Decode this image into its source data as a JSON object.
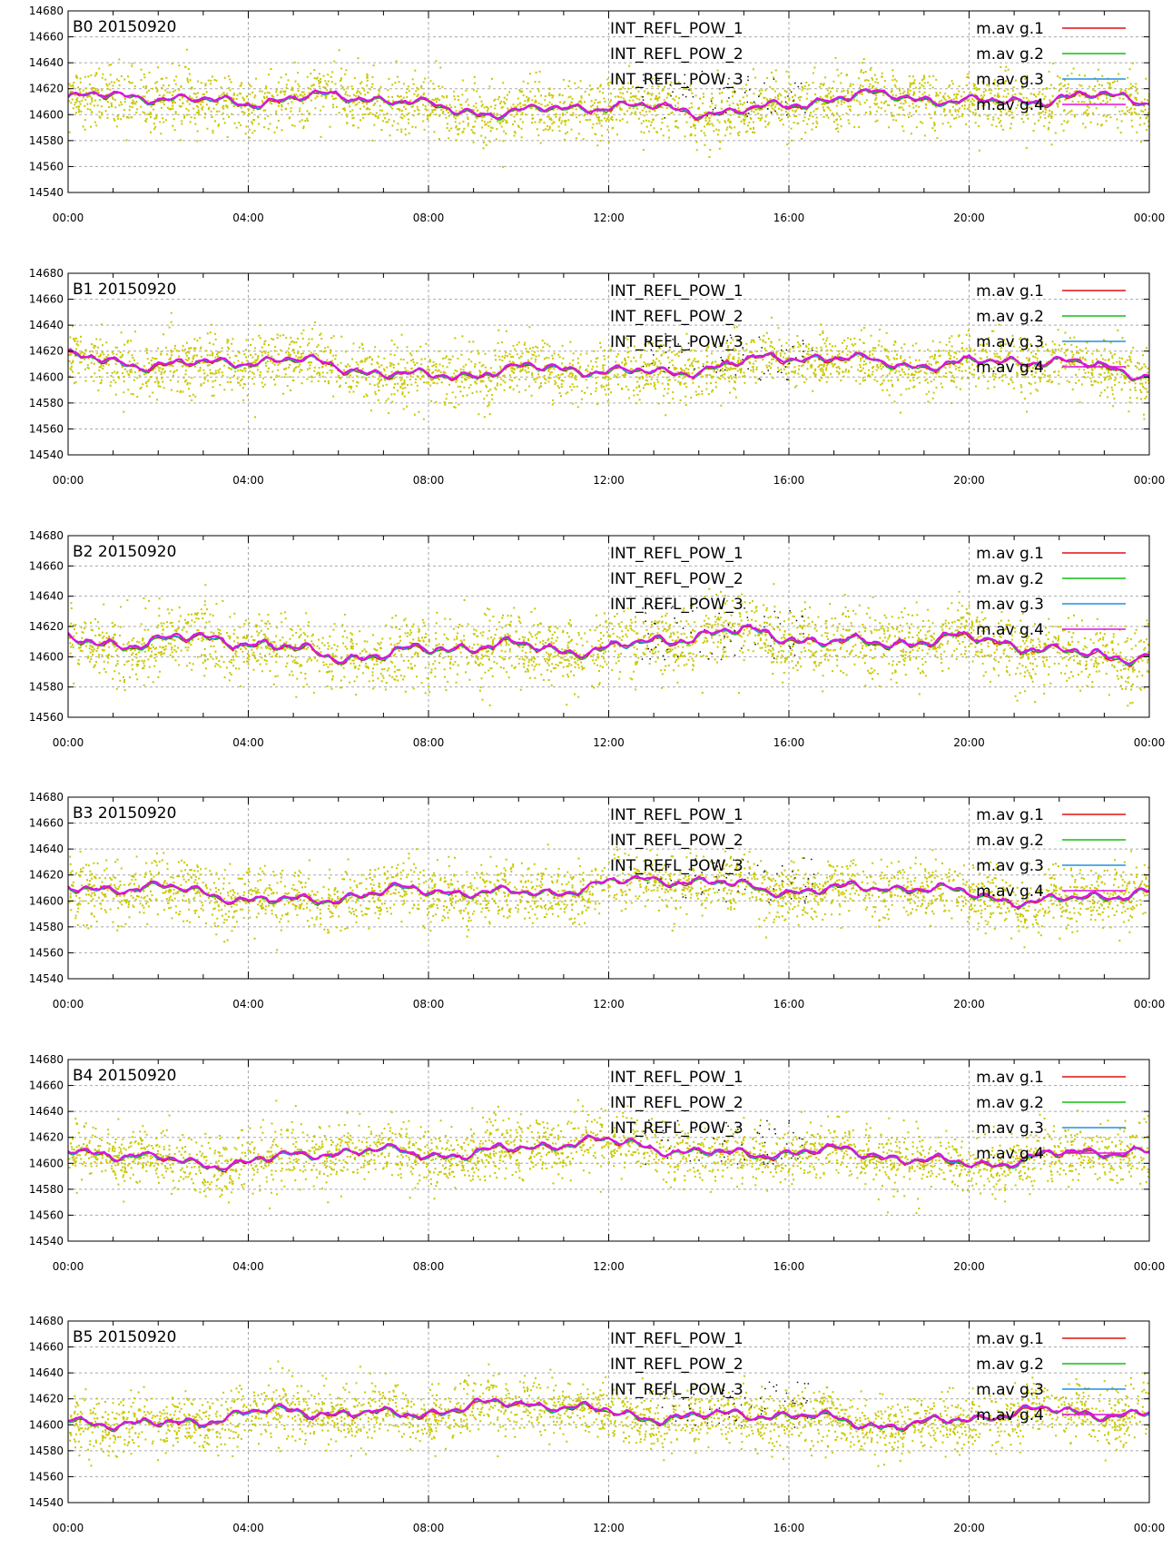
{
  "charts": [
    {
      "title": "B0 20150920"
    },
    {
      "title": "B1 20150920"
    },
    {
      "title": "B2 20150920"
    },
    {
      "title": "B3 20150920"
    },
    {
      "title": "B4 20150920"
    },
    {
      "title": "B5 20150920"
    }
  ],
  "chart_data": {
    "type": "scatter",
    "panel_count": 6,
    "x_ticks": [
      "00:00",
      "04:00",
      "08:00",
      "12:00",
      "16:00",
      "20:00",
      "00:00"
    ],
    "xlim": [
      "00:00",
      "24:00"
    ],
    "y_ticks": [
      14540,
      14560,
      14580,
      14600,
      14620,
      14640,
      14660,
      14680
    ],
    "ylim": [
      14540,
      14680
    ],
    "ylim_panel_B2": [
      14560,
      14680
    ],
    "grid": true,
    "legend_position": "top-right",
    "legend_left": [
      "INT_REFL_POW_1",
      "INT_REFL_POW_2",
      "INT_REFL_POW_3"
    ],
    "legend_right": [
      "m.av g.1",
      "m.av g.2",
      "m.av g.3",
      "m.av g.4"
    ],
    "series_colors": {
      "scatter": "#c8c800",
      "m.av g.1": "#e01010",
      "m.av g.2": "#10c010",
      "m.av g.3": "#2090e0",
      "m.av g.4": "#e010e0"
    },
    "typical_values": {
      "scatter_center": 14610,
      "scatter_spread": 25,
      "moving_average_center": 14608,
      "moving_average_range": [
        14595,
        14622
      ]
    }
  }
}
